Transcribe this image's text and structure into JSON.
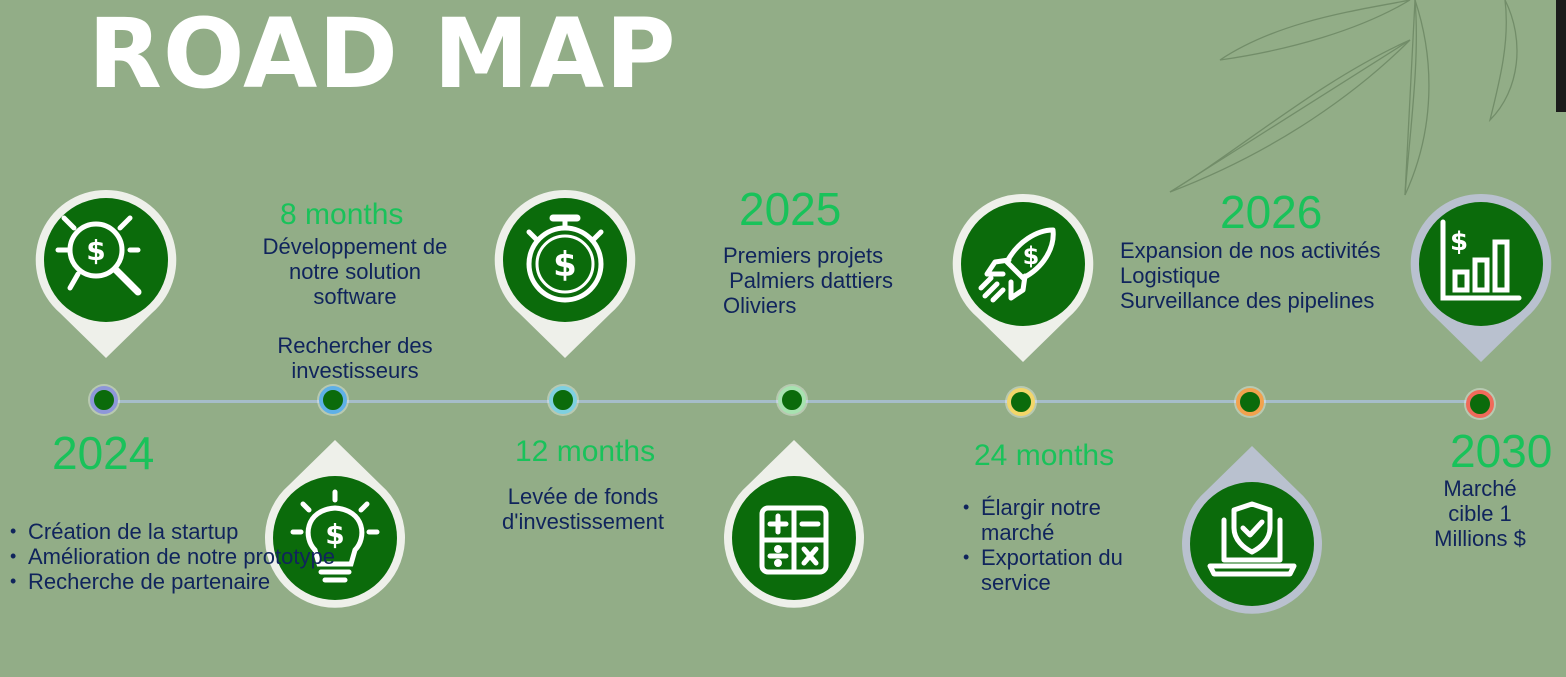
{
  "title": "ROAD MAP",
  "colors": {
    "background": "#92ad87",
    "year": "#19c25a",
    "text": "#10245c",
    "icon": "#0b6b0b"
  },
  "milestones": [
    {
      "year": "2024",
      "icon": "dollar-magnifier-icon",
      "bullets": [
        "Création de la startup",
        "Amélioration de notre prototype",
        "Recherche de partenaire"
      ]
    },
    {
      "duration": "8 months",
      "icon": "dollar-lightbulb-icon",
      "lines": [
        "Développement de",
        "notre solution",
        "software"
      ],
      "lines2": [
        "Rechercher des",
        "investisseurs"
      ]
    },
    {
      "duration": "12 months",
      "icon": "dollar-stopwatch-icon",
      "lines": [
        "Levée de fonds",
        "d'investissement"
      ]
    },
    {
      "year": "2025",
      "icon": "calculator-icon",
      "lines": [
        "Premiers projets",
        " Palmiers dattiers",
        "Oliviers"
      ]
    },
    {
      "duration": "24 months",
      "icon": "dollar-rocket-icon",
      "bullets": [
        "Élargir notre marché",
        "Exportation du service"
      ]
    },
    {
      "year": "2026",
      "icon": "laptop-shield-icon",
      "lines": [
        "Expansion de nos activités",
        "Logistique",
        "Surveillance des pipelines"
      ]
    },
    {
      "year": "2030",
      "icon": "dollar-bar-chart-icon",
      "lines": [
        "Marché",
        "cible 1",
        "Millions $"
      ]
    }
  ]
}
